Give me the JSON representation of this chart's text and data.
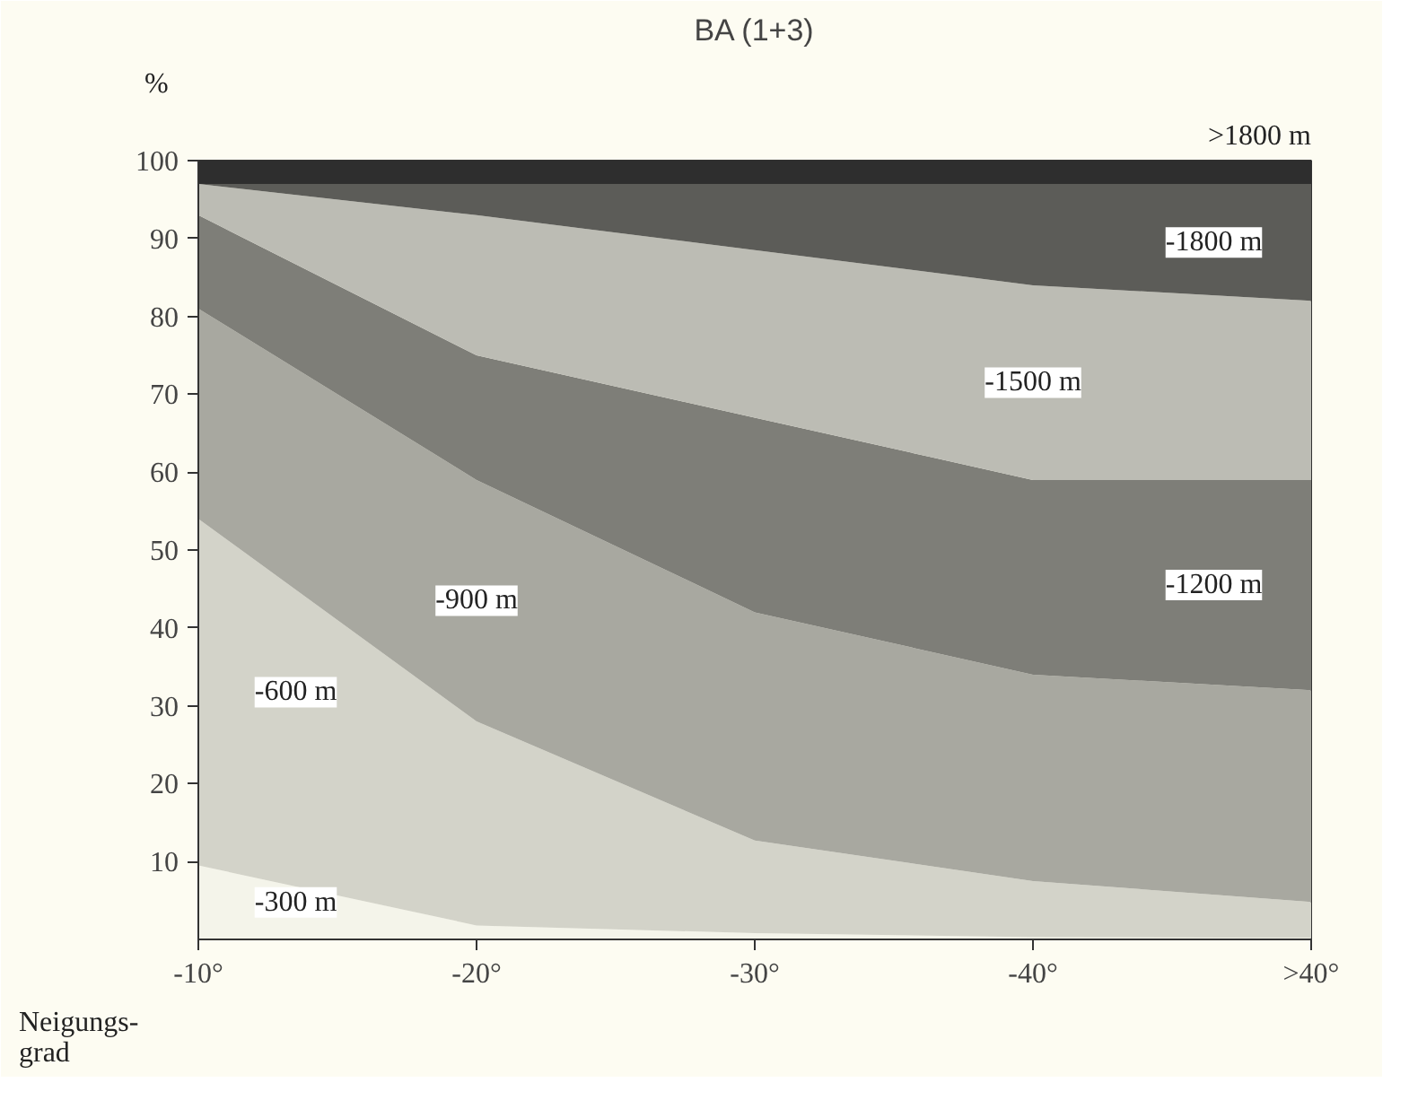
{
  "chart_data": {
    "type": "area",
    "stacked": true,
    "title": "BA (1+3)",
    "ylabel": "%",
    "xlabel": "Neigungs-\ngrad",
    "categories": [
      "-10°",
      "-20°",
      "-30°",
      "-40°",
      ">40°"
    ],
    "ylim": [
      0,
      100
    ],
    "yticks": [
      10,
      20,
      30,
      40,
      50,
      60,
      70,
      80,
      90,
      100
    ],
    "grid": false,
    "series": [
      {
        "name": "-300 m",
        "color": "#f4f4ea",
        "values": [
          9.5,
          1.8,
          0.8,
          0.3,
          0.2
        ]
      },
      {
        "name": "-600 m",
        "color": "#d3d3c9",
        "values": [
          44.5,
          26.2,
          11.9,
          7.2,
          4.6
        ]
      },
      {
        "name": "-900 m",
        "color": "#a8a8a0",
        "values": [
          27,
          31,
          29.3,
          26.5,
          27.2
        ]
      },
      {
        "name": "-1200 m",
        "color": "#7e7e78",
        "values": [
          12,
          16,
          25,
          25,
          27
        ]
      },
      {
        "name": "-1500 m",
        "color": "#bcbcb4",
        "values": [
          4,
          18,
          21.5,
          25,
          23
        ]
      },
      {
        "name": "-1800 m",
        "color": "#5c5c58",
        "values": [
          0,
          4,
          8.5,
          13,
          15
        ]
      },
      {
        "name": ">1800 m",
        "color": "#2e2e2e",
        "values": [
          3,
          3,
          3,
          3,
          3
        ]
      }
    ]
  }
}
